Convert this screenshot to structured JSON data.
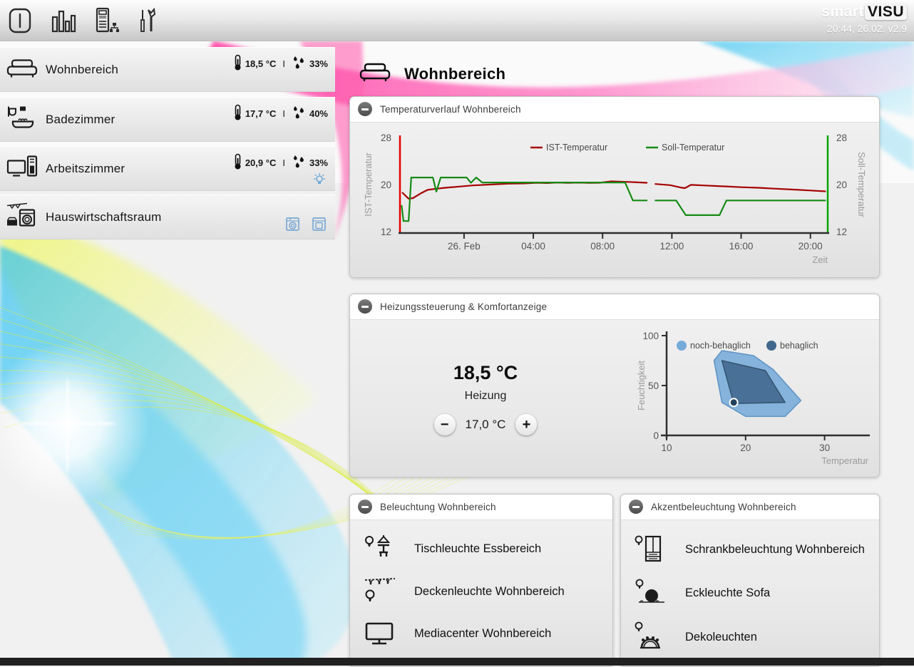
{
  "topbar": {
    "brand_prefix": "smart",
    "brand_suffix": "VISU",
    "status": "20:44, 26.02. v2.9",
    "nav_icons": [
      "power-icon",
      "bar-chart-icon",
      "server-icon",
      "tools-icon"
    ]
  },
  "sidebar": {
    "divider": "I",
    "rooms": [
      {
        "name": "Wohnbereich",
        "icon": "sofa-icon",
        "temp": "18,5 °C",
        "humidity": "33%"
      },
      {
        "name": "Badezimmer",
        "icon": "bathroom-icon",
        "temp": "17,7 °C",
        "humidity": "40%"
      },
      {
        "name": "Arbeitszimmer",
        "icon": "computer-icon",
        "temp": "20,9 °C",
        "humidity": "33%",
        "extra_icon": "light-on-icon"
      },
      {
        "name": "Hauswirtschaftsraum",
        "icon": "laundry-icon",
        "extra_icons": [
          "washing-machine-icon",
          "dryer-icon"
        ]
      }
    ]
  },
  "main": {
    "title": "Wohnbereich",
    "title_icon": "sofa-icon"
  },
  "panels": {
    "temperature": {
      "title": "Temperaturverlauf Wohnbereich",
      "collapse_icon": "minus-circle-icon"
    },
    "heating": {
      "title": "Heizungssteuerung & Komfortanzeige",
      "current_temp": "18,5 °C",
      "label": "Heizung",
      "setpoint": "17,0 °C",
      "minus_label": "−",
      "plus_label": "+"
    },
    "lights": {
      "title": "Beleuchtung Wohnbereich",
      "items": [
        {
          "label": "Tischleuchte Essbereich",
          "icon": "table-lamp-icon"
        },
        {
          "label": "Deckenleuchte Wohnbereich",
          "icon": "ceiling-lamp-icon"
        },
        {
          "label": "Mediacenter Wohnbereich",
          "icon": "tv-icon"
        }
      ]
    },
    "accent": {
      "title": "Akzentbeleuchtung Wohnbereich",
      "items": [
        {
          "label": "Schrankbeleuchtung Wohnbereich",
          "icon": "cabinet-light-icon"
        },
        {
          "label": "Eckleuchte Sofa",
          "icon": "ball-lamp-icon"
        },
        {
          "label": "Dekoleuchten",
          "icon": "deco-light-icon"
        }
      ]
    }
  },
  "colors": {
    "ist_line": "#a50000",
    "ist_axis": "#e60000",
    "soll_line": "#158a15",
    "soll_axis": "#00a400",
    "comfort_light": "#76abd9",
    "comfort_dark": "#41678c",
    "appliance_blue": "#6ea8d8",
    "axis_dark": "#2e2e2e",
    "tick_text": "#555555",
    "axis_title_text": "#9a9a9a"
  },
  "chart_data": [
    {
      "type": "line",
      "title": "Temperaturverlauf Wohnbereich",
      "xlabel": "Zeit",
      "ylabel_left": "IST-Temperatur",
      "ylabel_right": "Soll-Temperatur",
      "ylim": [
        12,
        28
      ],
      "yticks": [
        12,
        20,
        28
      ],
      "xlim": [
        -3.7,
        21.0
      ],
      "x_unit": "hours-from-midnight-26-Feb",
      "xticks": [
        {
          "x": 0,
          "label": "26. Feb"
        },
        {
          "x": 4,
          "label": "04:00"
        },
        {
          "x": 8,
          "label": "08:00"
        },
        {
          "x": 12,
          "label": "12:00"
        },
        {
          "x": 16,
          "label": "16:00"
        },
        {
          "x": 20,
          "label": "20:00"
        }
      ],
      "legend_position": "top-center",
      "series": [
        {
          "name": "IST-Temperatur",
          "color": "#a50000",
          "axis_color": "#e60000",
          "points": [
            [
              -3.55,
              18.6
            ],
            [
              -3.2,
              17.6
            ],
            [
              -2.95,
              17.7
            ],
            [
              -2.5,
              18.5
            ],
            [
              -2.1,
              19.1
            ],
            [
              -1.6,
              19.3
            ],
            [
              -1.1,
              19.45
            ],
            [
              -0.5,
              19.6
            ],
            [
              0.5,
              19.85
            ],
            [
              1.5,
              20.0
            ],
            [
              2.5,
              20.15
            ],
            [
              3.5,
              20.2
            ],
            [
              4.2,
              20.3
            ],
            [
              4.8,
              20.25
            ],
            [
              5.4,
              20.35
            ],
            [
              6.0,
              20.28
            ],
            [
              6.6,
              20.33
            ],
            [
              7.2,
              20.28
            ],
            [
              7.8,
              20.3
            ],
            [
              8.5,
              20.55
            ],
            [
              9.5,
              20.45
            ],
            [
              10.55,
              20.3
            ],
            null,
            [
              11.05,
              20.1
            ],
            [
              11.9,
              19.9
            ],
            [
              12.5,
              19.5
            ],
            [
              12.75,
              19.4
            ],
            [
              13.1,
              19.95
            ],
            [
              13.8,
              19.85
            ],
            [
              15.0,
              19.7
            ],
            [
              16.0,
              19.55
            ],
            [
              17.0,
              19.45
            ],
            [
              18.0,
              19.3
            ],
            [
              19.0,
              19.15
            ],
            [
              20.0,
              19.0
            ],
            [
              20.85,
              18.85
            ]
          ]
        },
        {
          "name": "Soll-Temperatur",
          "color": "#158a15",
          "axis_color": "#00a400",
          "points": [
            [
              -3.6,
              16.4
            ],
            [
              -3.5,
              13.8
            ],
            [
              -3.2,
              13.8
            ],
            [
              -3.05,
              21.2
            ],
            [
              -1.8,
              21.2
            ],
            [
              -1.6,
              18.8
            ],
            [
              -1.35,
              21.2
            ],
            [
              0.15,
              21.2
            ],
            [
              0.4,
              20.3
            ],
            [
              0.7,
              21.2
            ],
            [
              1.05,
              20.35
            ],
            [
              9.3,
              20.35
            ],
            [
              9.75,
              17.3
            ],
            [
              10.55,
              17.3
            ],
            null,
            [
              11.05,
              17.3
            ],
            [
              12.25,
              17.3
            ],
            [
              12.8,
              14.8
            ],
            [
              14.75,
              14.8
            ],
            [
              15.15,
              17.3
            ],
            [
              20.85,
              17.3
            ]
          ]
        }
      ]
    },
    {
      "type": "area-scatter",
      "title": "Komfortanzeige",
      "xlabel": "Temperatur",
      "ylabel": "Feuchtigkeit",
      "xlim": [
        10,
        35
      ],
      "ylim": [
        0,
        100
      ],
      "xticks": [
        10,
        20,
        30
      ],
      "yticks": [
        0,
        50,
        100
      ],
      "legend_position": "top-left",
      "zones": [
        {
          "name": "noch-behaglich",
          "color": "#76abd9",
          "stroke": "#5e93c4",
          "points": [
            [
              16,
              75
            ],
            [
              17,
              85
            ],
            [
              21,
              80
            ],
            [
              23.5,
              66
            ],
            [
              27,
              35
            ],
            [
              25,
              19
            ],
            [
              20,
              19
            ],
            [
              17,
              33
            ]
          ]
        },
        {
          "name": "behaglich",
          "color": "#41678c",
          "stroke": "#33536f",
          "points": [
            [
              17,
              75
            ],
            [
              22.5,
              65
            ],
            [
              25,
              33
            ],
            [
              18.5,
              32
            ]
          ]
        }
      ],
      "marker": {
        "x": 18.5,
        "y": 33,
        "color": "#24415c"
      }
    }
  ]
}
